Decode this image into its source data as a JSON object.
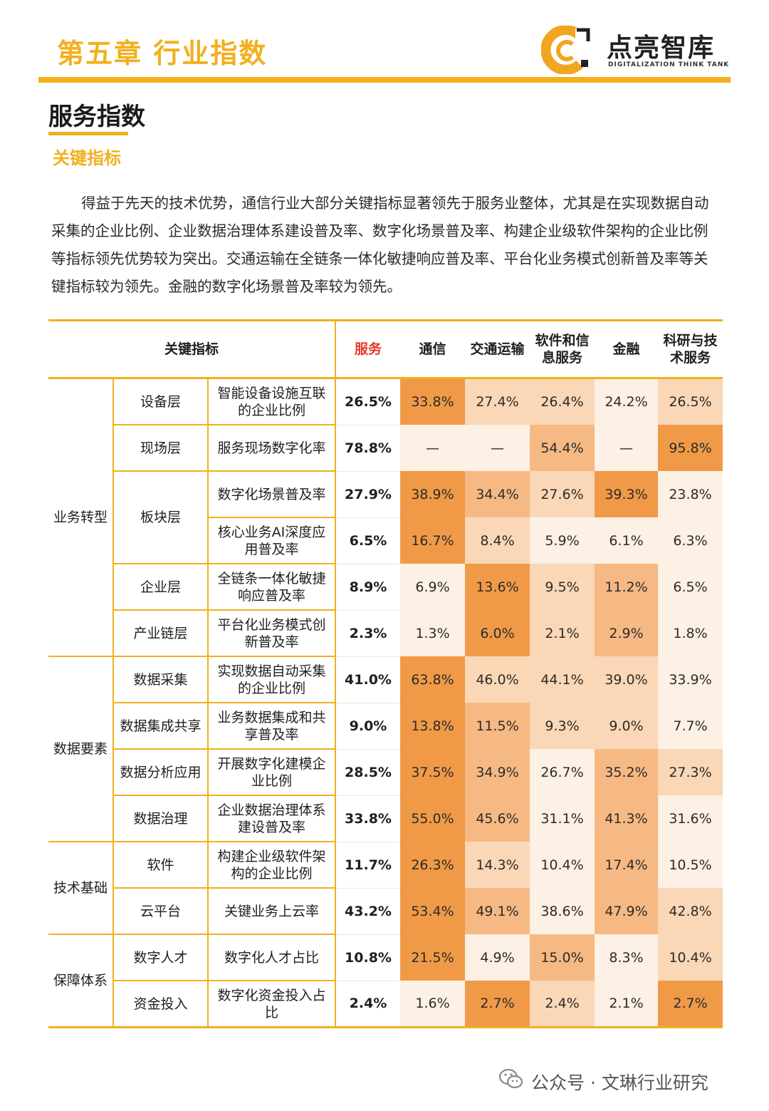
{
  "header": {
    "chapter_title": "第五章  行业指数",
    "logo_name": "点亮智库",
    "logo_subtitle": "DIGITALIZATION THINK TANK"
  },
  "section_title": "服务指数",
  "subsection_title": "关键指标",
  "intro_paragraph": "得益于先天的技术优势，通信行业大部分关键指标显著领先于服务业整体，尤其是在实现数据自动采集的企业比例、企业数据治理体系建设普及率、数字化场景普及率、构建企业级软件架构的企业比例等指标领先优势较为突出。交通运输在全链条一体化敏捷响应普及率、平台化业务模式创新普及率等关键指标较为领先。金融的数字化场景普及率较为领先。",
  "table": {
    "header_label": "关键指标",
    "columns": [
      "服务",
      "通信",
      "交通运输",
      "软件和信息服务",
      "金融",
      "科研与技术服务"
    ],
    "column_display": [
      "服务",
      "通信",
      "交通运输",
      "软件和信\n息服务",
      "金融",
      "科研与技\n术服务"
    ],
    "rows": [
      {
        "category": "业务转型",
        "sub": "设备层",
        "indicator": "智能设备设施互联的企业比例",
        "values": [
          "26.5%",
          "33.8%",
          "27.4%",
          "26.4%",
          "24.2%",
          "26.5%"
        ]
      },
      {
        "category": "业务转型",
        "sub": "现场层",
        "indicator": "服务现场数字化率",
        "values": [
          "78.8%",
          "—",
          "—",
          "54.4%",
          "—",
          "95.8%"
        ]
      },
      {
        "category": "业务转型",
        "sub": "板块层",
        "indicator": "数字化场景普及率",
        "values": [
          "27.9%",
          "38.9%",
          "34.4%",
          "27.6%",
          "39.3%",
          "23.8%"
        ]
      },
      {
        "category": "业务转型",
        "sub": "板块层",
        "indicator": "核心业务AI深度应用普及率",
        "values": [
          "6.5%",
          "16.7%",
          "8.4%",
          "5.9%",
          "6.1%",
          "6.3%"
        ]
      },
      {
        "category": "业务转型",
        "sub": "企业层",
        "indicator": "全链条一体化敏捷响应普及率",
        "values": [
          "8.9%",
          "6.9%",
          "13.6%",
          "9.5%",
          "11.2%",
          "6.5%"
        ]
      },
      {
        "category": "业务转型",
        "sub": "产业链层",
        "indicator": "平台化业务模式创新普及率",
        "values": [
          "2.3%",
          "1.3%",
          "6.0%",
          "2.1%",
          "2.9%",
          "1.8%"
        ]
      },
      {
        "category": "数据要素",
        "sub": "数据采集",
        "indicator": "实现数据自动采集的企业比例",
        "values": [
          "41.0%",
          "63.8%",
          "46.0%",
          "44.1%",
          "39.0%",
          "33.9%"
        ]
      },
      {
        "category": "数据要素",
        "sub": "数据集成共享",
        "indicator": "业务数据集成和共享普及率",
        "values": [
          "9.0%",
          "13.8%",
          "11.5%",
          "9.3%",
          "9.0%",
          "7.7%"
        ]
      },
      {
        "category": "数据要素",
        "sub": "数据分析应用",
        "indicator": "开展数字化建模企业比例",
        "values": [
          "28.5%",
          "37.5%",
          "34.9%",
          "26.7%",
          "35.2%",
          "27.3%"
        ]
      },
      {
        "category": "数据要素",
        "sub": "数据治理",
        "indicator": "企业数据治理体系建设普及率",
        "values": [
          "33.8%",
          "55.0%",
          "45.6%",
          "31.1%",
          "41.3%",
          "31.6%"
        ]
      },
      {
        "category": "技术基础",
        "sub": "软件",
        "indicator": "构建企业级软件架构的企业比例",
        "values": [
          "11.7%",
          "26.3%",
          "14.3%",
          "10.4%",
          "17.4%",
          "10.5%"
        ]
      },
      {
        "category": "技术基础",
        "sub": "云平台",
        "indicator": "关键业务上云率",
        "values": [
          "43.2%",
          "53.4%",
          "49.1%",
          "38.6%",
          "47.9%",
          "42.8%"
        ]
      },
      {
        "category": "保障体系",
        "sub": "数字人才",
        "indicator": "数字化人才占比",
        "values": [
          "10.8%",
          "21.5%",
          "4.9%",
          "15.0%",
          "8.3%",
          "10.4%"
        ]
      },
      {
        "category": "保障体系",
        "sub": "资金投入",
        "indicator": "数字化资金投入占比",
        "values": [
          "2.4%",
          "1.6%",
          "2.7%",
          "2.4%",
          "2.1%",
          "2.7%"
        ]
      }
    ],
    "cell_levels": [
      [
        0,
        3,
        1,
        1,
        0,
        1
      ],
      [
        0,
        0,
        0,
        2,
        0,
        3
      ],
      [
        0,
        3,
        2,
        1,
        3,
        0
      ],
      [
        0,
        3,
        1,
        0,
        0,
        0
      ],
      [
        0,
        0,
        3,
        1,
        2,
        0
      ],
      [
        0,
        0,
        3,
        1,
        2,
        0
      ],
      [
        0,
        3,
        1,
        1,
        1,
        0
      ],
      [
        0,
        3,
        2,
        1,
        1,
        0
      ],
      [
        0,
        3,
        2,
        0,
        2,
        1
      ],
      [
        0,
        3,
        2,
        0,
        2,
        0
      ],
      [
        0,
        3,
        1,
        0,
        2,
        0
      ],
      [
        0,
        3,
        2,
        0,
        2,
        1
      ],
      [
        0,
        3,
        0,
        2,
        0,
        1
      ],
      [
        0,
        0,
        3,
        1,
        0,
        3
      ]
    ],
    "level_colors": [
      "#fdf0e4",
      "#fad7b6",
      "#f6b983",
      "#f09a48"
    ]
  },
  "watermark": "公众号 · 文琳行业研究"
}
